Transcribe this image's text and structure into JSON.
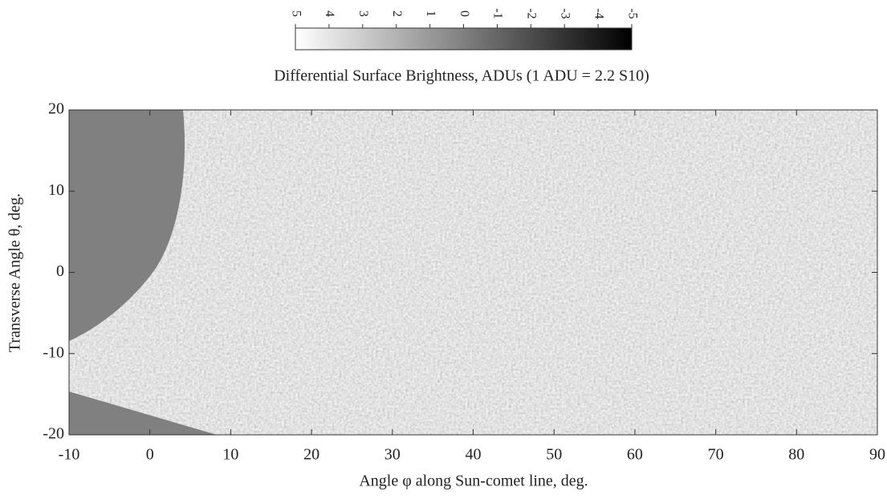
{
  "chart_data": {
    "type": "image",
    "title": "Differential Surface Brightness, ADUs (1 ADU = 2.2 S10)",
    "x_label": "Angle φ along Sun-comet line, deg.",
    "y_label": "Transverse Angle θ, deg.",
    "xlim": [
      -10,
      90
    ],
    "xticks": [
      -10,
      0,
      10,
      20,
      30,
      40,
      50,
      60,
      70,
      80,
      90
    ],
    "ylim": [
      -20,
      20
    ],
    "yticks": [
      -20,
      -10,
      0,
      10,
      20
    ],
    "colorbar": {
      "lim": [
        5,
        -5
      ],
      "ticks": [
        5,
        4,
        3,
        2,
        1,
        0,
        -1,
        -2,
        -3,
        -4,
        -5
      ],
      "colors": [
        "#ffffff",
        "#000000"
      ]
    }
  }
}
